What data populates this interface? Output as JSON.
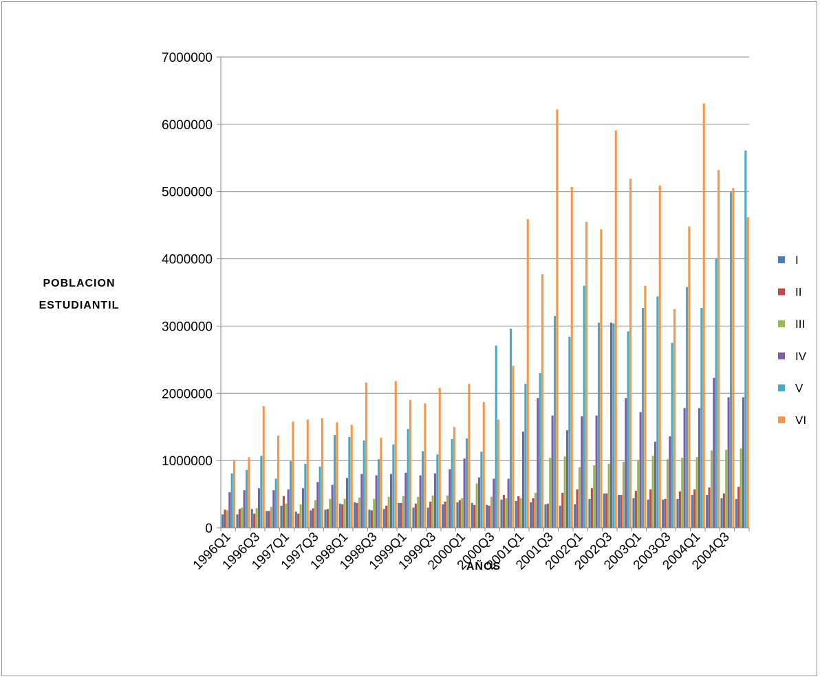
{
  "chart_data": {
    "type": "bar",
    "title": "",
    "xlabel": "AÑOS",
    "ylabel_lines": [
      "POBLACION",
      "ESTUDIANTIL"
    ],
    "ylim": [
      0,
      7000000
    ],
    "yticks": [
      0,
      1000000,
      2000000,
      3000000,
      4000000,
      5000000,
      6000000,
      7000000
    ],
    "ytick_labels": [
      "0",
      "1000000",
      "2000000",
      "3000000",
      "4000000",
      "5000000",
      "6000000",
      "7000000"
    ],
    "grid": true,
    "legend_position": "right",
    "categories": [
      "1996Q1",
      "1996Q2",
      "1996Q3",
      "1996Q4",
      "1997Q1",
      "1997Q2",
      "1997Q3",
      "1997Q4",
      "1998Q1",
      "1998Q2",
      "1998Q3",
      "1998Q4",
      "1999Q1",
      "1999Q2",
      "1999Q3",
      "1999Q4",
      "2000Q1",
      "2000Q2",
      "2000Q3",
      "2000Q4",
      "2001Q1",
      "2001Q2",
      "2001Q3",
      "2001Q4",
      "2002Q1",
      "2002Q2",
      "2002Q3",
      "2002Q4",
      "2003Q1",
      "2003Q2",
      "2003Q3",
      "2003Q4",
      "2004Q1",
      "2004Q2",
      "2004Q3",
      "2004Q4"
    ],
    "xtick_labels": [
      "1996Q1",
      "1996Q3",
      "1997Q1",
      "1997Q3",
      "1998Q1",
      "1998Q3",
      "1999Q1",
      "1999Q3",
      "2000Q1",
      "2000Q3",
      "2001Q1",
      "2001Q3",
      "2002Q1",
      "2002Q3",
      "2003Q1",
      "2003Q3",
      "2004Q1",
      "2004Q3"
    ],
    "series": [
      {
        "name": "I",
        "color": "#4a7ebb",
        "values": [
          200000,
          200000,
          280000,
          250000,
          330000,
          240000,
          260000,
          270000,
          360000,
          380000,
          270000,
          280000,
          370000,
          300000,
          300000,
          350000,
          380000,
          370000,
          340000,
          420000,
          400000,
          380000,
          350000,
          330000,
          350000,
          430000,
          510000,
          490000,
          440000,
          420000,
          420000,
          430000,
          490000,
          490000,
          440000,
          430000
        ]
      },
      {
        "name": "II",
        "color": "#be4b48",
        "values": [
          270000,
          280000,
          210000,
          250000,
          470000,
          210000,
          290000,
          280000,
          350000,
          370000,
          260000,
          330000,
          370000,
          360000,
          390000,
          390000,
          410000,
          340000,
          330000,
          490000,
          470000,
          440000,
          360000,
          520000,
          570000,
          590000,
          510000,
          490000,
          550000,
          570000,
          430000,
          540000,
          570000,
          600000,
          510000,
          610000
        ]
      },
      {
        "name": "III",
        "color": "#98b954",
        "values": [
          260000,
          300000,
          290000,
          310000,
          360000,
          350000,
          410000,
          430000,
          430000,
          450000,
          430000,
          460000,
          470000,
          460000,
          480000,
          480000,
          440000,
          660000,
          460000,
          440000,
          440000,
          520000,
          1040000,
          1060000,
          900000,
          930000,
          950000,
          980000,
          1010000,
          1070000,
          1020000,
          1040000,
          1050000,
          1150000,
          1160000,
          1180000
        ]
      },
      {
        "name": "IV",
        "color": "#7d60a0",
        "values": [
          530000,
          560000,
          590000,
          560000,
          570000,
          590000,
          680000,
          640000,
          740000,
          800000,
          780000,
          800000,
          820000,
          780000,
          810000,
          870000,
          1030000,
          750000,
          730000,
          730000,
          1430000,
          1930000,
          1670000,
          1450000,
          1660000,
          1670000,
          3050000,
          1930000,
          1720000,
          1280000,
          1360000,
          1780000,
          1780000,
          2230000,
          1940000,
          1940000
        ]
      },
      {
        "name": "V",
        "color": "#46aac5",
        "values": [
          810000,
          860000,
          1070000,
          730000,
          990000,
          950000,
          910000,
          1380000,
          1350000,
          1300000,
          1020000,
          1240000,
          1470000,
          1140000,
          1090000,
          1320000,
          1330000,
          1130000,
          2710000,
          2960000,
          2140000,
          2300000,
          3150000,
          2840000,
          3600000,
          3050000,
          3040000,
          2920000,
          3270000,
          3440000,
          2750000,
          3580000,
          3270000,
          4010000,
          4990000,
          5610000
        ]
      },
      {
        "name": "VI",
        "color": "#f79646",
        "values": [
          1010000,
          1050000,
          1810000,
          1370000,
          1580000,
          1610000,
          1630000,
          1570000,
          1530000,
          2160000,
          1340000,
          2180000,
          1900000,
          1850000,
          2080000,
          1500000,
          2140000,
          1870000,
          1610000,
          2410000,
          4590000,
          3770000,
          6220000,
          5070000,
          4550000,
          4440000,
          5910000,
          5190000,
          3600000,
          5090000,
          3250000,
          4480000,
          6310000,
          5320000,
          5050000,
          4620000
        ]
      }
    ]
  }
}
